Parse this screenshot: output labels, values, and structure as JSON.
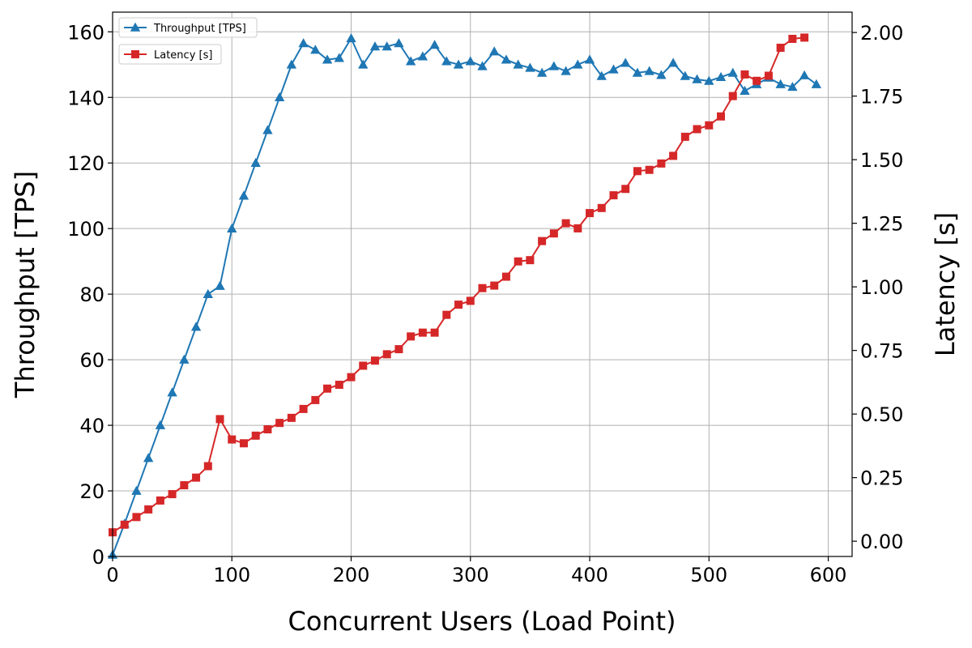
{
  "chart_data": {
    "type": "line",
    "xlabel": "Concurrent Users (Load Point)",
    "ylabel_left": "Throughput [TPS]",
    "ylabel_right": "Latency [s]",
    "xlim": [
      0,
      620
    ],
    "ylim_left": [
      0,
      166
    ],
    "ylim_right": [
      -0.06,
      2.08
    ],
    "xticks": [
      0,
      100,
      200,
      300,
      400,
      500,
      600
    ],
    "yticks_left": [
      0,
      20,
      40,
      60,
      80,
      100,
      120,
      140,
      160
    ],
    "yticks_right": [
      0.0,
      0.25,
      0.5,
      0.75,
      1.0,
      1.25,
      1.5,
      1.75,
      2.0
    ],
    "grid": true,
    "legend_position": "top-left",
    "series": [
      {
        "name": "Throughput [TPS]",
        "axis": "left",
        "color": "#1f77b4",
        "marker": "triangle",
        "x": [
          0,
          10,
          20,
          30,
          40,
          50,
          60,
          70,
          80,
          90,
          100,
          110,
          120,
          130,
          140,
          150,
          160,
          170,
          180,
          190,
          200,
          210,
          220,
          230,
          240,
          250,
          260,
          270,
          280,
          290,
          300,
          310,
          320,
          330,
          340,
          350,
          360,
          370,
          380,
          390,
          400,
          410,
          420,
          430,
          440,
          450,
          460,
          470,
          480,
          490,
          500,
          510,
          520,
          530,
          540,
          550,
          560,
          570,
          580,
          590
        ],
        "values": [
          0.5,
          10,
          20,
          30,
          40,
          50,
          60,
          70,
          80,
          82.5,
          100,
          110,
          120,
          130,
          140,
          150,
          156.5,
          154.5,
          151.5,
          152,
          158,
          150,
          155.5,
          155.5,
          156.5,
          151,
          152.5,
          156,
          151,
          150,
          151,
          149.5,
          154,
          151.5,
          150,
          149,
          147.5,
          149.5,
          148,
          150,
          151.5,
          146.5,
          148.5,
          150.5,
          147.5,
          148,
          146.8,
          150.5,
          146.5,
          145.5,
          145,
          146.2,
          147.5,
          142,
          144,
          146,
          144,
          143.2,
          146.7,
          144
        ]
      },
      {
        "name": "Latency [s]",
        "axis": "right",
        "color": "#d62728",
        "marker": "square",
        "x": [
          0,
          10,
          20,
          30,
          40,
          50,
          60,
          70,
          80,
          90,
          100,
          110,
          120,
          130,
          140,
          150,
          160,
          170,
          180,
          190,
          200,
          210,
          220,
          230,
          240,
          250,
          260,
          270,
          280,
          290,
          300,
          310,
          320,
          330,
          340,
          350,
          360,
          370,
          380,
          390,
          400,
          410,
          420,
          430,
          440,
          450,
          460,
          470,
          480,
          490,
          500,
          510,
          520,
          530,
          540,
          550,
          560,
          570,
          580
        ],
        "values": [
          0.035,
          0.065,
          0.095,
          0.125,
          0.16,
          0.185,
          0.22,
          0.25,
          0.295,
          0.48,
          0.4,
          0.385,
          0.415,
          0.44,
          0.465,
          0.485,
          0.52,
          0.555,
          0.6,
          0.615,
          0.645,
          0.69,
          0.71,
          0.735,
          0.755,
          0.805,
          0.82,
          0.82,
          0.89,
          0.93,
          0.945,
          0.995,
          1.005,
          1.04,
          1.1,
          1.105,
          1.18,
          1.21,
          1.25,
          1.23,
          1.29,
          1.31,
          1.36,
          1.385,
          1.455,
          1.46,
          1.485,
          1.515,
          1.59,
          1.62,
          1.635,
          1.67,
          1.75,
          1.835,
          1.81,
          1.83,
          1.94,
          1.975,
          1.98
        ]
      }
    ]
  }
}
